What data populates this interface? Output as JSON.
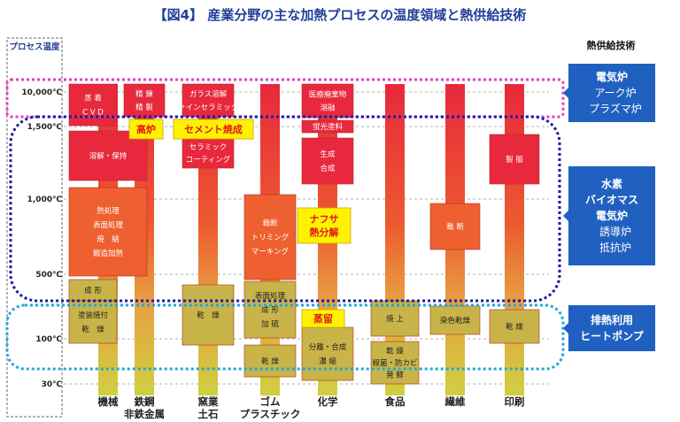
{
  "chart_data": {
    "type": "range-bar",
    "title": "【図4】 産業分野の主な加熱プロセスの温度領域と熱供給技術",
    "y_axis_label": "プロセス温度",
    "y_ticks": [
      "10,000℃",
      "1,500℃",
      "1,000℃",
      "500℃",
      "100℃",
      "30℃"
    ],
    "categories": [
      {
        "id": "kikai",
        "label": [
          "機械"
        ]
      },
      {
        "id": "tekko",
        "label": [
          "鉄鋼",
          "非鉄金属"
        ]
      },
      {
        "id": "yogyo",
        "label": [
          "窯業",
          "土石"
        ]
      },
      {
        "id": "gomu",
        "label": [
          "ゴム",
          "プラスチック"
        ]
      },
      {
        "id": "kagaku",
        "label": [
          "化学"
        ]
      },
      {
        "id": "shokuhin",
        "label": [
          "食品"
        ]
      },
      {
        "id": "seni",
        "label": [
          "繊維"
        ]
      },
      {
        "id": "insatsu",
        "label": [
          "印刷"
        ]
      }
    ],
    "processes": [
      {
        "category": "kikai",
        "lines": [
          "蒸 着",
          "C V D"
        ],
        "temp_low": "1,500℃",
        "temp_high": "10,000℃"
      },
      {
        "category": "kikai",
        "lines": [
          "溶解・保持"
        ],
        "temp_low": "1,000℃",
        "temp_high": "1,500℃"
      },
      {
        "category": "kikai",
        "lines": [
          "熱処理",
          "表面処理",
          "焼　結",
          "鍛造加熱"
        ],
        "temp_low": "500℃",
        "temp_high": "1,000℃"
      },
      {
        "category": "kikai",
        "lines": [
          "成 形"
        ],
        "temp_low": "100℃",
        "temp_high": "500℃"
      },
      {
        "category": "kikai",
        "lines": [
          "塗装焼付",
          "乾　燥"
        ],
        "temp_low": "30℃",
        "temp_high": "100℃"
      },
      {
        "category": "tekko",
        "lines": [
          "精 錬",
          "精 製"
        ],
        "temp_low": "1,500℃",
        "temp_high": "10,000℃"
      },
      {
        "category": "yogyo",
        "lines": [
          "ガラス溶解",
          "ファインセラミックス"
        ],
        "temp_low": "1,500℃",
        "temp_high": "10,000℃"
      },
      {
        "category": "yogyo",
        "lines": [
          "セラミック",
          "コーティング"
        ],
        "temp_low": "1,000℃",
        "temp_high": "1,500℃"
      },
      {
        "category": "yogyo",
        "lines": [
          "乾　燥"
        ],
        "temp_low": "30℃",
        "temp_high": "500℃"
      },
      {
        "category": "gomu",
        "lines": [
          "裁断",
          "トリミング",
          "マーキング"
        ],
        "temp_low": "500℃",
        "temp_high": "1,000℃"
      },
      {
        "category": "gomu",
        "lines": [
          "表面処理",
          "成 形",
          "加 硫"
        ],
        "temp_low": "100℃",
        "temp_high": "500℃"
      },
      {
        "category": "gomu",
        "lines": [
          "乾 燥"
        ],
        "temp_low": "30℃",
        "temp_high": "100℃"
      },
      {
        "category": "kagaku",
        "lines": [
          "医療廃棄物",
          "溶融"
        ],
        "temp_low": "1,500℃",
        "temp_high": "10,000℃"
      },
      {
        "category": "kagaku",
        "lines": [
          "蛍光塗料"
        ],
        "temp_low": "1,500℃",
        "temp_high": "1,500℃"
      },
      {
        "category": "kagaku",
        "lines": [
          "生成",
          "合成"
        ],
        "temp_low": "1,000℃",
        "temp_high": "1,500℃"
      },
      {
        "category": "kagaku",
        "lines": [
          "分離・合成",
          "濃 縮"
        ],
        "temp_low": "30℃",
        "temp_high": "100℃"
      },
      {
        "category": "shokuhin",
        "lines": [
          "焼 上"
        ],
        "temp_low": "100℃",
        "temp_high": "500℃"
      },
      {
        "category": "shokuhin",
        "lines": [
          "乾 燥",
          "殺菌・防カビ",
          "発 酵"
        ],
        "temp_low": "30℃",
        "temp_high": "100℃"
      },
      {
        "category": "seni",
        "lines": [
          "裁 断"
        ],
        "temp_low": "500℃",
        "temp_high": "1,000℃"
      },
      {
        "category": "seni",
        "lines": [
          "染色乾燥"
        ],
        "temp_low": "100℃",
        "temp_high": "500℃"
      },
      {
        "category": "insatsu",
        "lines": [
          "製 版"
        ],
        "temp_low": "1,000℃",
        "temp_high": "1,500℃"
      },
      {
        "category": "insatsu",
        "lines": [
          "乾 燥"
        ],
        "temp_low": "30℃",
        "temp_high": "500℃"
      }
    ],
    "highlight_labels": [
      {
        "category": "tekko",
        "text": "高炉"
      },
      {
        "category": "yogyo",
        "text": "セメント焼成"
      },
      {
        "category": "kagaku",
        "text": [
          "ナフサ",
          "熱分解"
        ]
      },
      {
        "category": "kagaku",
        "text": "蒸留"
      }
    ],
    "heat_supply_header": "熱供給技術",
    "heat_supply": [
      {
        "range": "10,000℃",
        "border_color": "#e040c0",
        "lines": [
          "電気炉",
          "アーク炉",
          "プラズマ炉"
        ]
      },
      {
        "range": "500℃–1,500℃",
        "border_color": "#1a1aa8",
        "lines": [
          "水素",
          "バイオマス",
          "電気炉",
          "誘導炉",
          "抵抗炉"
        ]
      },
      {
        "range": "30℃–100℃",
        "border_color": "#20a8d8",
        "lines": [
          "排熱利用",
          "ヒートポンプ"
        ]
      }
    ],
    "colors": {
      "hot": "#e8283c",
      "mid": "#f08030",
      "cool": "#d8c040",
      "box_cool": "#c8b448",
      "side_panel": "#2060c0",
      "highlight_bg": "#fff200"
    }
  }
}
